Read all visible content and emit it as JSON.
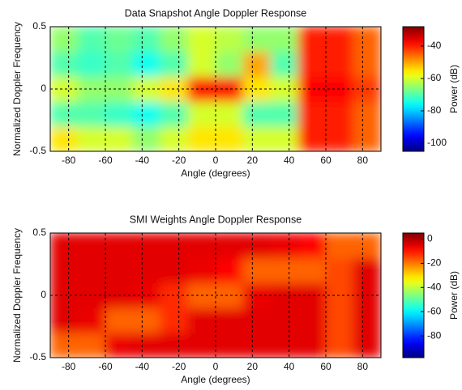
{
  "chart_data": [
    {
      "type": "heatmap",
      "title": "Data Snapshot Angle Doppler Response",
      "xlabel": "Angle (degrees)",
      "ylabel": "Normalized Doppler Frequency",
      "colorbar_label": "Power (dB)",
      "colormap": "jet",
      "grid": true,
      "x": [
        -82.5,
        -67.5,
        -52.5,
        -37.5,
        -22.5,
        -7.5,
        7.5,
        22.5,
        37.5,
        52.5,
        67.5,
        82.5
      ],
      "y": [
        -0.4,
        -0.2,
        0,
        0.2,
        0.4
      ],
      "values": [
        [
          -55,
          -60,
          -60,
          -65,
          -60,
          -55,
          -55,
          -60,
          -60,
          -40,
          -40,
          -45
        ],
        [
          -70,
          -70,
          -72,
          -75,
          -70,
          -60,
          -60,
          -70,
          -70,
          -40,
          -40,
          -45
        ],
        [
          -60,
          -65,
          -65,
          -60,
          -55,
          -40,
          -40,
          -55,
          -60,
          -38,
          -38,
          -42
        ],
        [
          -70,
          -72,
          -70,
          -75,
          -70,
          -60,
          -65,
          -50,
          -70,
          -40,
          -40,
          -45
        ],
        [
          -65,
          -70,
          -68,
          -70,
          -65,
          -60,
          -62,
          -65,
          -65,
          -40,
          -40,
          -45
        ]
      ],
      "xlim": [
        -90,
        90
      ],
      "xticks": [
        -80,
        -60,
        -40,
        -20,
        0,
        20,
        40,
        60,
        80
      ],
      "ylim": [
        -0.5,
        0.5
      ],
      "yticks": [
        -0.5,
        0,
        0.5
      ],
      "clim": [
        -105,
        -28
      ],
      "cticks": [
        -100,
        -80,
        -60,
        -40
      ]
    },
    {
      "type": "heatmap",
      "title": "SMI Weights Angle Doppler Response",
      "xlabel": "Angle (degrees)",
      "ylabel": "Normalized Doppler Frequency",
      "colorbar_label": "Power (dB)",
      "colormap": "jet",
      "grid": true,
      "x": [
        -82.5,
        -67.5,
        -52.5,
        -37.5,
        -22.5,
        -7.5,
        7.5,
        22.5,
        37.5,
        52.5,
        67.5,
        82.5
      ],
      "y": [
        -0.4,
        -0.2,
        0,
        0.2,
        0.4
      ],
      "values": [
        [
          -18,
          -18,
          -6,
          -5,
          -5,
          -5,
          -5,
          -5,
          -5,
          -5,
          -15,
          -5
        ],
        [
          -5,
          -6,
          -18,
          -18,
          -12,
          -5,
          -5,
          -5,
          -5,
          -5,
          -15,
          -5
        ],
        [
          -5,
          -5,
          -5,
          -6,
          -12,
          -18,
          -18,
          -6,
          -5,
          -5,
          -15,
          -5
        ],
        [
          -5,
          -5,
          -5,
          -5,
          -5,
          -6,
          -8,
          -18,
          -18,
          -18,
          -15,
          -5
        ],
        [
          -5,
          -5,
          -5,
          -5,
          -5,
          -5,
          -5,
          -5,
          -6,
          -8,
          -18,
          -18
        ]
      ],
      "xlim": [
        -90,
        90
      ],
      "xticks": [
        -80,
        -60,
        -40,
        -20,
        0,
        20,
        40,
        60,
        80
      ],
      "ylim": [
        -0.5,
        0.5
      ],
      "yticks": [
        -0.5,
        0,
        0.5
      ],
      "clim": [
        -98,
        5
      ],
      "cticks": [
        -80,
        -60,
        -40,
        -20,
        0
      ]
    }
  ]
}
